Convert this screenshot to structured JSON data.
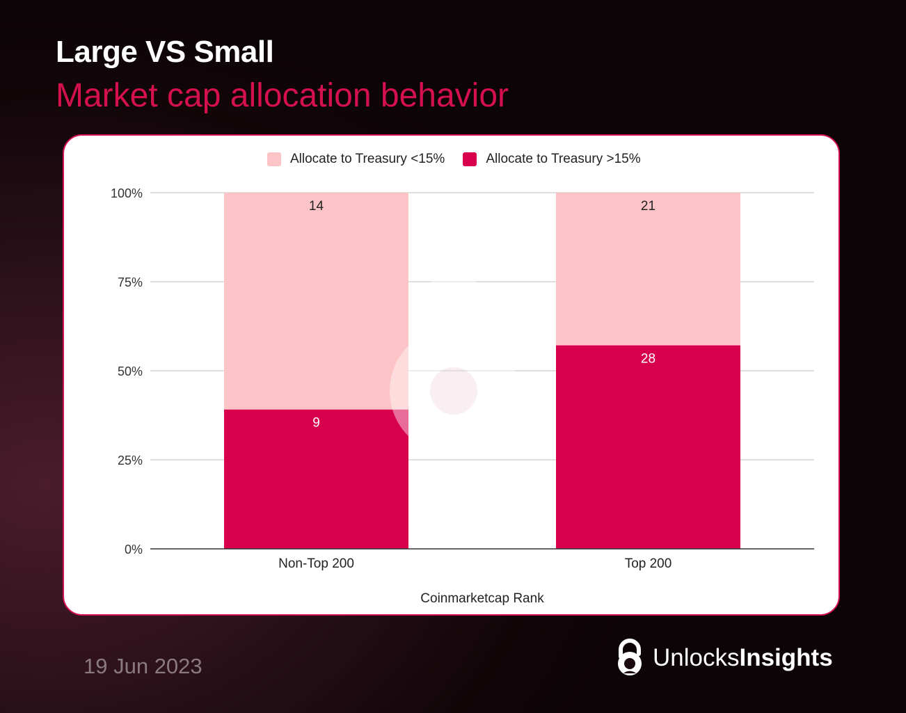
{
  "header": {
    "title": "Large VS Small",
    "subtitle": "Market cap allocation behavior"
  },
  "footer": {
    "date": "19 Jun 2023",
    "brand_light": "Unlocks",
    "brand_bold": "Insights"
  },
  "colors": {
    "accent": "#d4104f",
    "series_low": "#fcc4c6",
    "series_high": "#d8004d"
  },
  "chart_data": {
    "type": "bar",
    "stacked": "percent",
    "xlabel": "Coinmarketcap Rank",
    "ylabel": "",
    "categories": [
      "Non-Top 200",
      "Top 200"
    ],
    "yticks": [
      "0%",
      "25%",
      "50%",
      "75%",
      "100%"
    ],
    "ylim": [
      0,
      100
    ],
    "series": [
      {
        "name": "Allocate to Treasury <15%",
        "values": [
          14,
          21
        ],
        "color": "#fcc4c6"
      },
      {
        "name": "Allocate to Treasury >15%",
        "values": [
          9,
          28
        ],
        "color": "#d8004d"
      }
    ],
    "legend": "top"
  }
}
